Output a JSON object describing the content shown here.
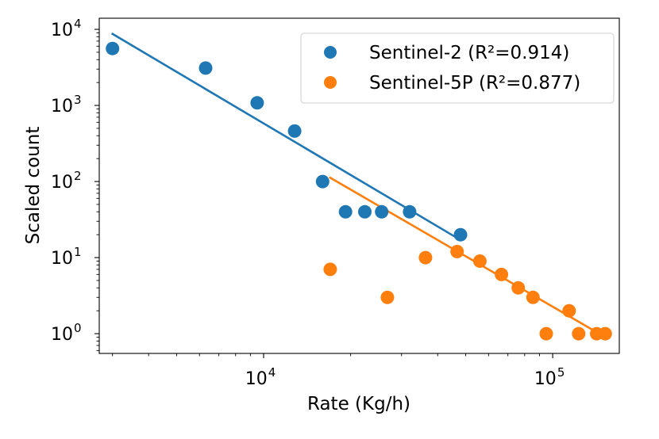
{
  "chart_data": {
    "type": "scatter",
    "title": "",
    "xlabel": "Rate (Kg/h)",
    "ylabel": "Scaled count",
    "xscale": "log",
    "yscale": "log",
    "xlim": [
      2700,
      170000
    ],
    "ylim": [
      0.55,
      14000
    ],
    "x_ticks": [
      {
        "value": 10000,
        "base": "10",
        "exp": "4"
      },
      {
        "value": 100000,
        "base": "10",
        "exp": "5"
      }
    ],
    "y_ticks": [
      {
        "value": 1,
        "base": "10",
        "exp": "0"
      },
      {
        "value": 10,
        "base": "10",
        "exp": "1"
      },
      {
        "value": 100,
        "base": "10",
        "exp": "2"
      },
      {
        "value": 1000,
        "base": "10",
        "exp": "3"
      },
      {
        "value": 10000,
        "base": "10",
        "exp": "4"
      }
    ],
    "grid": false,
    "legend_position": "top-right",
    "series": [
      {
        "name": "Sentinel-2 (R²=0.914)",
        "color": "#1f77b4",
        "points": [
          {
            "x": 3000,
            "y": 5600
          },
          {
            "x": 6300,
            "y": 3100
          },
          {
            "x": 9500,
            "y": 1080
          },
          {
            "x": 12800,
            "y": 460
          },
          {
            "x": 16000,
            "y": 100
          },
          {
            "x": 19200,
            "y": 40
          },
          {
            "x": 22400,
            "y": 40
          },
          {
            "x": 25600,
            "y": 40
          },
          {
            "x": 32000,
            "y": 40
          },
          {
            "x": 48000,
            "y": 20
          }
        ],
        "fit_line": [
          {
            "x": 3000,
            "y": 8700
          },
          {
            "x": 48000,
            "y": 17
          }
        ]
      },
      {
        "name": "Sentinel-5P (R²=0.877)",
        "color": "#ff7f0e",
        "points": [
          {
            "x": 17000,
            "y": 7
          },
          {
            "x": 26800,
            "y": 3
          },
          {
            "x": 36300,
            "y": 10
          },
          {
            "x": 46700,
            "y": 12
          },
          {
            "x": 56000,
            "y": 9
          },
          {
            "x": 66500,
            "y": 6
          },
          {
            "x": 76000,
            "y": 4
          },
          {
            "x": 85500,
            "y": 3
          },
          {
            "x": 95000,
            "y": 1
          },
          {
            "x": 114000,
            "y": 2
          },
          {
            "x": 123000,
            "y": 1
          },
          {
            "x": 142000,
            "y": 1
          },
          {
            "x": 152000,
            "y": 1
          }
        ],
        "fit_line": [
          {
            "x": 17000,
            "y": 112
          },
          {
            "x": 145000,
            "y": 1
          }
        ]
      }
    ]
  }
}
